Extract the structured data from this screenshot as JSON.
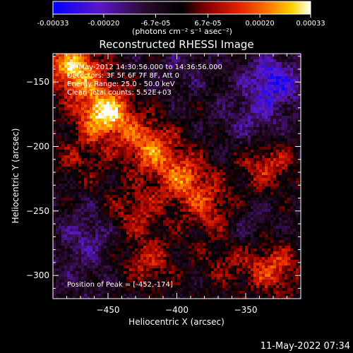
{
  "colorbar": {
    "tick_labels": [
      "-0.00033",
      "-0.00020",
      "-6.7e-05",
      "6.7e-05",
      "0.00020",
      "0.00033"
    ],
    "tick_values": [
      -0.00033,
      -0.0002,
      -6.7e-05,
      6.7e-05,
      0.0002,
      0.00033
    ],
    "range": [
      -0.00033,
      0.00033
    ],
    "unit_label": "(photons cm⁻² s⁻¹ asec⁻²)",
    "colors": [
      "#0000ff",
      "#5a18c8",
      "#2a0a2a",
      "#000000",
      "#8a0000",
      "#e02000",
      "#ff7a00",
      "#ffd400",
      "#ffffff"
    ]
  },
  "chart_data": {
    "type": "heatmap",
    "title": "Reconstructed RHESSI Image",
    "xlabel": "Heliocentric X (arcsec)",
    "ylabel": "Heliocentric Y (arcsec)",
    "xlim": [
      -490,
      -310
    ],
    "ylim": [
      -318,
      -128
    ],
    "x_ticks": [
      -450,
      -400,
      -350
    ],
    "y_ticks": [
      -150,
      -200,
      -250,
      -300
    ],
    "x_tick_labels": [
      "−450",
      "−400",
      "−350"
    ],
    "y_tick_labels": [
      "−150",
      "−200",
      "−250",
      "−300"
    ],
    "grid": false,
    "info_lines": [
      "31-May-2012 14:30:56.000 to 14:36:56.000",
      "Detectors: 3F 5F 6F 7F 8F, Att 0",
      "Energy Range: 25.0 - 50.0 keV",
      "Clean     Total counts: 5.52E+03"
    ],
    "peak_label": "Position of Peak = [-452,-174]",
    "peak_position": [
      -452,
      -174
    ],
    "peak_value": 0.00033,
    "min_value": -0.00033,
    "bright_regions": [
      {
        "x": -475,
        "y": -140,
        "value": 0.00028
      },
      {
        "x": -452,
        "y": -174,
        "value": 0.00033
      },
      {
        "x": -420,
        "y": -200,
        "value": 0.0002
      },
      {
        "x": -395,
        "y": -225,
        "value": 0.00018
      },
      {
        "x": -375,
        "y": -250,
        "value": 0.00012
      },
      {
        "x": -430,
        "y": -250,
        "value": 0.0001
      },
      {
        "x": -420,
        "y": -290,
        "value": 0.0001
      },
      {
        "x": -335,
        "y": -215,
        "value": 0.00012
      },
      {
        "x": -330,
        "y": -295,
        "value": 0.00015
      },
      {
        "x": -470,
        "y": -210,
        "value": 6e-05
      },
      {
        "x": -365,
        "y": -290,
        "value": 5e-05
      }
    ],
    "dark_regions": [
      {
        "x": -330,
        "y": -150,
        "value": -0.00026
      },
      {
        "x": -345,
        "y": -180,
        "value": -0.00015
      },
      {
        "x": -355,
        "y": -260,
        "value": -0.00012
      },
      {
        "x": -465,
        "y": -270,
        "value": -0.00016
      },
      {
        "x": -395,
        "y": -140,
        "value": -0.0001
      },
      {
        "x": -470,
        "y": -305,
        "value": -8e-05
      }
    ]
  },
  "timestamp": "11-May-2022 07:34"
}
